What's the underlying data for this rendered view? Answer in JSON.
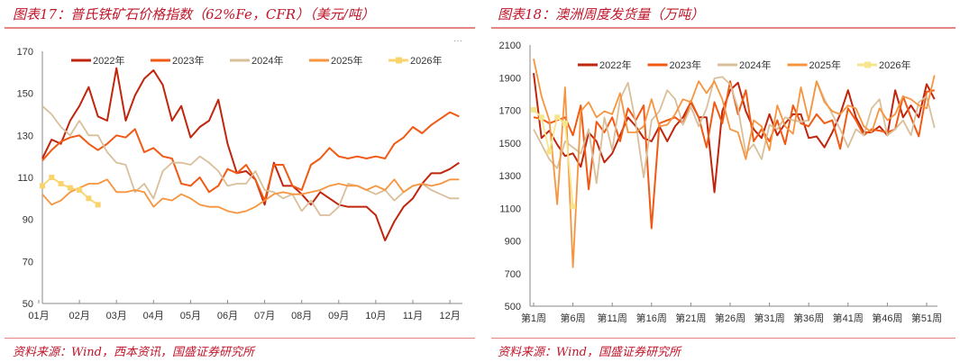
{
  "left_title": "图表17：普氏铁矿石价格指数（62%Fe，CFR）（美元/吨）",
  "right_title": "图表18：澳洲周度发货量（万吨）",
  "left_source": "资料来源：Wind，西本资讯，国盛证券研究所",
  "right_source": "资料来源：Wind，国盛证券研究所",
  "more_icon": "…",
  "chart_data": [
    {
      "type": "line",
      "title": "普氏铁矿石价格指数（62%Fe，CFR）（美元/吨）",
      "ylim": [
        50,
        170
      ],
      "yticks": [
        50,
        70,
        90,
        110,
        130,
        150,
        170
      ],
      "xtick_labels": [
        "01月",
        "02月",
        "03月",
        "04月",
        "05月",
        "06月",
        "07月",
        "08月",
        "09月",
        "10月",
        "11月",
        "12月"
      ],
      "x_months": [
        0,
        0.25,
        0.5,
        0.75,
        1,
        1.25,
        1.5,
        1.75,
        2,
        2.25,
        2.5,
        2.75,
        3,
        3.25,
        3.5,
        3.75,
        4,
        4.25,
        4.5,
        4.75,
        5,
        5.25,
        5.5,
        5.75,
        6,
        6.25,
        6.5,
        6.75,
        7,
        7.25,
        7.5,
        7.75,
        8,
        8.25,
        8.5,
        8.75,
        9,
        9.25,
        9.5,
        9.75,
        10,
        10.25,
        10.5,
        10.75,
        11,
        11.25
      ],
      "legend": "top",
      "series": [
        {
          "name": "2022年",
          "color": "#c0260e",
          "values": [
            119,
            128,
            126,
            137,
            144,
            153,
            139,
            137,
            162,
            137,
            149,
            157,
            161,
            154,
            137,
            144,
            129,
            134,
            137,
            147,
            126,
            112,
            113,
            109,
            97,
            117,
            106,
            106,
            102,
            97,
            103,
            100,
            97,
            96,
            96,
            96,
            92,
            80,
            89,
            96,
            100,
            107,
            112,
            112,
            114,
            117
          ]
        },
        {
          "name": "2023年",
          "color": "#f05a14",
          "values": [
            118,
            123,
            127,
            129,
            130,
            126,
            123,
            126,
            130,
            129,
            133,
            122,
            124,
            120,
            119,
            107,
            106,
            110,
            103,
            106,
            114,
            112,
            116,
            109,
            99,
            116,
            116,
            106,
            104,
            116,
            119,
            124,
            120,
            119,
            120,
            119,
            120,
            119,
            126,
            129,
            134,
            131,
            135,
            138,
            141,
            139
          ]
        },
        {
          "name": "2024年",
          "color": "#d9bf9a",
          "values": [
            144,
            140,
            134,
            130,
            137,
            130,
            130,
            122,
            117,
            116,
            103,
            107,
            100,
            113,
            117,
            117,
            116,
            120,
            117,
            113,
            106,
            107,
            107,
            113,
            104,
            103,
            100,
            102,
            94,
            99,
            92,
            92,
            96,
            107,
            106,
            104,
            102,
            104,
            99,
            103,
            106,
            107,
            104,
            102,
            100,
            100
          ]
        },
        {
          "name": "2025年",
          "color": "#f7953f",
          "values": [
            102,
            97,
            99,
            103,
            105,
            107,
            107,
            109,
            103,
            103,
            104,
            103,
            96,
            100,
            99,
            102,
            100,
            97,
            96,
            96,
            94,
            93,
            94,
            96,
            99,
            102,
            103,
            102,
            102,
            103,
            104,
            106,
            107,
            106,
            106,
            104,
            106,
            104,
            109,
            103,
            106,
            107,
            106,
            107,
            109,
            109
          ]
        },
        {
          "name": "2026年",
          "color": "#f9d36b",
          "marker": "square",
          "values": [
            106,
            110,
            107,
            105,
            104,
            100,
            97
          ]
        }
      ]
    },
    {
      "type": "line",
      "title": "澳洲周度发货量（万吨）",
      "ylim": [
        500,
        2100
      ],
      "yticks": [
        500,
        700,
        900,
        1100,
        1300,
        1500,
        1700,
        1900,
        2100
      ],
      "xtick_labels": [
        "第1周",
        "第6周",
        "第11周",
        "第16周",
        "第21周",
        "第26周",
        "第31周",
        "第36周",
        "第41周",
        "第46周",
        "第51周"
      ],
      "x_weeks_start": 1,
      "legend": "top",
      "series": [
        {
          "name": "2022年",
          "color": "#c0260e",
          "values": [
            1928,
            1530,
            1575,
            1490,
            1420,
            1436,
            1354,
            1565,
            1510,
            1381,
            1436,
            1547,
            1657,
            1602,
            1530,
            1510,
            1602,
            1510,
            1602,
            1657,
            1750,
            1657,
            1657,
            1198,
            1694,
            1823,
            1869,
            1694,
            1584,
            1530,
            1676,
            1547,
            1620,
            1676,
            1676,
            1530,
            1540,
            1473,
            1565,
            1676,
            1823,
            1657,
            1565,
            1565,
            1602,
            1547,
            1823,
            1657,
            1730,
            1657,
            1860,
            1768
          ]
        },
        {
          "name": "2023年",
          "color": "#f05a14",
          "values": [
            1657,
            1648,
            1620,
            1639,
            1657,
            1547,
            1730,
            1216,
            1630,
            1565,
            1657,
            1510,
            1712,
            1639,
            1730,
            977,
            1620,
            1639,
            1657,
            1620,
            1758,
            1657,
            1473,
            1750,
            1620,
            1878,
            1676,
            1823,
            1510,
            1584,
            1510,
            1639,
            1492,
            1730,
            1620,
            1602,
            1676,
            1620,
            1639,
            1464,
            1712,
            1639,
            1547,
            1584,
            1575,
            1565,
            1584,
            1786,
            1657,
            1540,
            1814,
            1823
          ]
        },
        {
          "name": "2024年",
          "color": "#d9bf9a",
          "values": [
            1584,
            1492,
            1400,
            1345,
            1510,
            1473,
            1436,
            1584,
            1253,
            1657,
            1455,
            1768,
            1869,
            1620,
            1289,
            1639,
            1694,
            1823,
            1768,
            1611,
            1722,
            1602,
            1712,
            1896,
            1905,
            1860,
            1712,
            1436,
            1492,
            1400,
            1611,
            1584,
            1657,
            1639,
            1630,
            1639,
            1878,
            1768,
            1676,
            1584,
            1473,
            1584,
            1547,
            1712,
            1768,
            1547,
            1584,
            1639,
            1547,
            1750,
            1786,
            1593
          ]
        },
        {
          "name": "2025年",
          "color": "#f7953f",
          "values": [
            2016,
            1786,
            1639,
            1124,
            1841,
            738,
            1694,
            1750,
            1657,
            1694,
            1676,
            1805,
            1565,
            1565,
            1602,
            1768,
            1602,
            1611,
            1676,
            1768,
            1750,
            1878,
            1805,
            1878,
            1768,
            1584,
            1565,
            1400,
            1639,
            1602,
            1455,
            1730,
            1602,
            1556,
            1841,
            1639,
            1878,
            1750,
            1694,
            1676,
            1730,
            1712,
            1602,
            1565,
            1712,
            1639,
            1676,
            1786,
            1768,
            1730,
            1712,
            1915
          ]
        },
        {
          "name": "2026年",
          "color": "#f5e68a",
          "marker": "square",
          "values": [
            1703,
            1657,
            1446,
            1657,
            1620,
            1111
          ]
        }
      ]
    }
  ]
}
